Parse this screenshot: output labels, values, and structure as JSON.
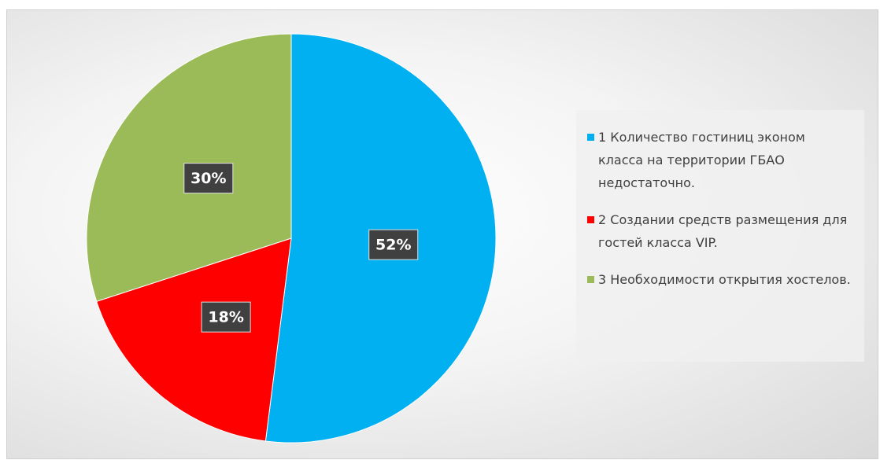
{
  "chart_data": {
    "type": "pie",
    "categories": [
      "1 Количество гостиниц эконом класса на территории ГБАО недостаточно.",
      "2 Создании средств размещения для гостей класса VIP.",
      "3  Необходимости открытия хостелов."
    ],
    "values": [
      52,
      18,
      30
    ],
    "value_labels": [
      "52%",
      "18%",
      "30%"
    ],
    "colors": [
      "#00b0f0",
      "#ff0000",
      "#9bbb59"
    ],
    "legend": "right"
  }
}
